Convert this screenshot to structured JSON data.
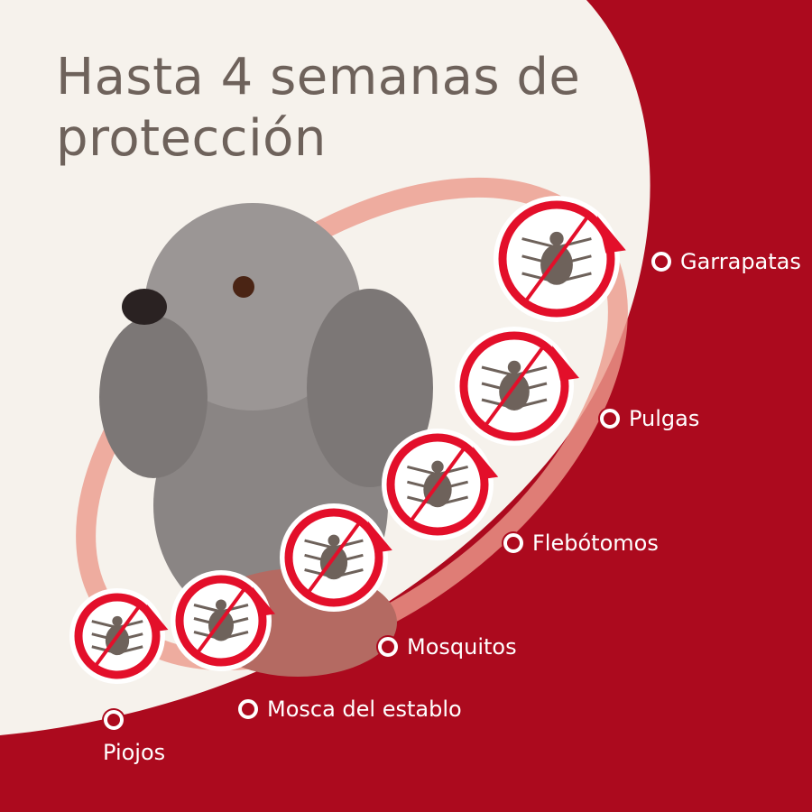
{
  "title": "Hasta 4 semanas de protección",
  "colors": {
    "background": "#ac0a1e",
    "panel": "#f6f2ec",
    "accent": "#e30f2a",
    "icon": "#6e625b",
    "text": "#ffffff"
  },
  "pests": [
    {
      "label": "Garrapatas",
      "icon": "tick-icon"
    },
    {
      "label": "Pulgas",
      "icon": "flea-icon"
    },
    {
      "label": "Flebótomos",
      "icon": "sandfly-icon"
    },
    {
      "label": "Mosquitos",
      "icon": "mosquito-icon"
    },
    {
      "label": "Mosca del establo",
      "icon": "stable-fly-icon"
    },
    {
      "label": "Piojos",
      "icon": "louse-icon"
    }
  ]
}
